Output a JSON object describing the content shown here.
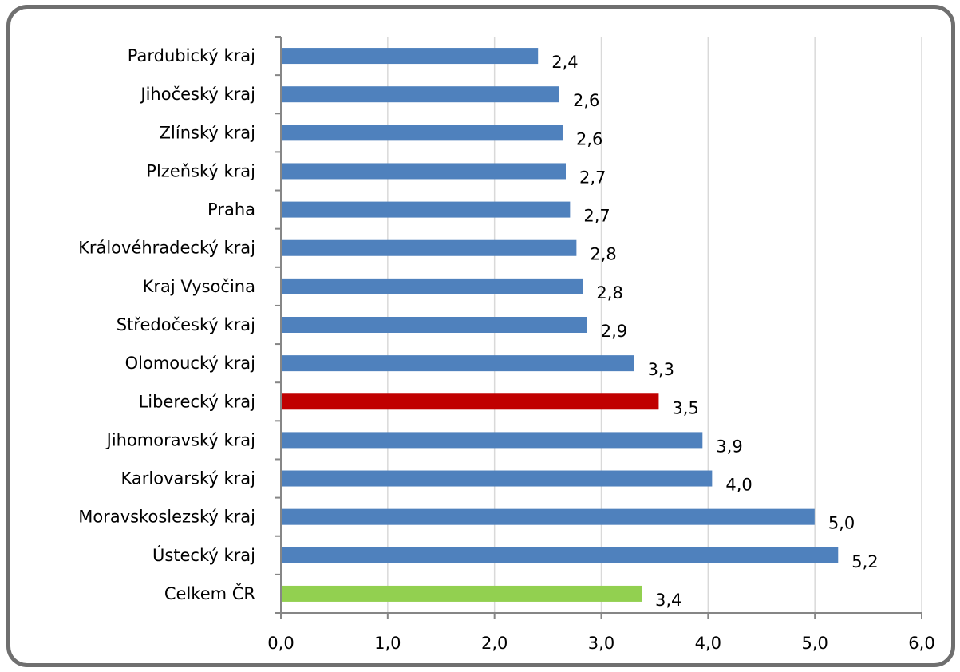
{
  "chart_data": {
    "type": "bar",
    "orientation": "horizontal",
    "title": "",
    "xlabel": "",
    "ylabel": "",
    "categories": [
      "Pardubický kraj",
      "Jihočeský kraj",
      "Zlínský kraj",
      "Plzeňský kraj",
      "Praha",
      "Královéhradecký kraj",
      "Kraj Vysočina",
      "Středočeský kraj",
      "Olomoucký kraj",
      "Liberecký kraj",
      "Jihomoravský kraj",
      "Karlovarský kraj",
      "Moravskoslezský kraj",
      "Ústecký kraj",
      "Celkem ČR"
    ],
    "values": [
      2.4,
      2.6,
      2.63,
      2.66,
      2.7,
      2.76,
      2.82,
      2.86,
      3.3,
      3.53,
      3.94,
      4.03,
      4.99,
      5.21,
      3.37
    ],
    "value_labels": [
      "2,4",
      "2,6",
      "2,6",
      "2,7",
      "2,7",
      "2,8",
      "2,8",
      "2,9",
      "3,3",
      "3,5",
      "3,9",
      "4,0",
      "5,0",
      "5,2",
      "3,4"
    ],
    "bar_colors": [
      "#4f81bd",
      "#4f81bd",
      "#4f81bd",
      "#4f81bd",
      "#4f81bd",
      "#4f81bd",
      "#4f81bd",
      "#4f81bd",
      "#4f81bd",
      "#c00000",
      "#4f81bd",
      "#4f81bd",
      "#4f81bd",
      "#4f81bd",
      "#92d050"
    ],
    "xlim": [
      0,
      6
    ],
    "x_ticks": [
      0,
      1,
      2,
      3,
      4,
      5,
      6
    ],
    "x_tick_labels": [
      "0,0",
      "1,0",
      "2,0",
      "3,0",
      "4,0",
      "5,0",
      "6,0"
    ],
    "grid": "vertical",
    "legend": "none"
  },
  "colors": {
    "default_bar": "#4f81bd",
    "highlight_bar": "#c00000",
    "total_bar": "#92d050",
    "grid": "#d9d9d9",
    "axis": "#868686",
    "frame": "#6f6f6f"
  }
}
